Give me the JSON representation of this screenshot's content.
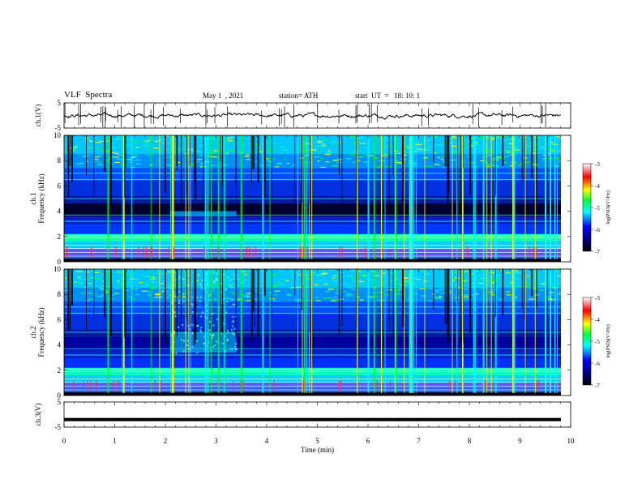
{
  "header": {
    "title": "VLF  Spectra",
    "date": "May 1  , 2021",
    "station": "station= ATH",
    "start": "start  UT  =   18: 10: 1"
  },
  "chart_data": [
    {
      "type": "line",
      "panel": "ch1-waveform",
      "ylabel": "ch.1(V)",
      "ylim": [
        -5,
        5
      ],
      "yticks": [
        "5",
        "-5"
      ],
      "xlim": [
        0,
        10
      ],
      "note_level": 0.0
    },
    {
      "type": "heatmap",
      "panel": "ch1-spectrogram",
      "ylabel": "ch.1\nFrequency  (kHz)",
      "ylim": [
        0,
        10
      ],
      "yticks": [
        "0",
        "2",
        "4",
        "6",
        "8",
        "10"
      ],
      "xlim": [
        0,
        10
      ],
      "colorbar": {
        "label": "log(PSD)(V²/Hz)",
        "range": [
          -7,
          -3
        ],
        "ticks": [
          "-3",
          "-4",
          "-5",
          "-6",
          "-7"
        ]
      }
    },
    {
      "type": "heatmap",
      "panel": "ch2-spectrogram",
      "ylabel": "ch.2\nFrequency  (kHz)",
      "ylim": [
        0,
        10
      ],
      "yticks": [
        "0",
        "2",
        "4",
        "6",
        "8",
        "10"
      ],
      "xlim": [
        0,
        10
      ],
      "colorbar": {
        "label": "log(PSD)(V²/Hz)",
        "range": [
          -7,
          -3
        ],
        "ticks": [
          "-3",
          "-4",
          "-5",
          "-6",
          "-7"
        ]
      }
    },
    {
      "type": "line",
      "panel": "ch3-waveform",
      "ylabel": "ch.3(V)",
      "ylim": [
        -5,
        5
      ],
      "yticks": [
        "5",
        "-5"
      ],
      "xlim": [
        0,
        10
      ],
      "xlabel": "Time  (min)",
      "xticks": [
        "0",
        "1",
        "2",
        "3",
        "4",
        "5",
        "6",
        "7",
        "8",
        "9",
        "10"
      ],
      "note_level": -2.0
    }
  ],
  "colors": {
    "black": "#000000",
    "deep_blue": "#00007a",
    "blue": "#0000ff",
    "cyan": "#00ffff",
    "green": "#00ff40",
    "yellow": "#ffff00",
    "red": "#ff0000",
    "white": "#ffffff"
  }
}
